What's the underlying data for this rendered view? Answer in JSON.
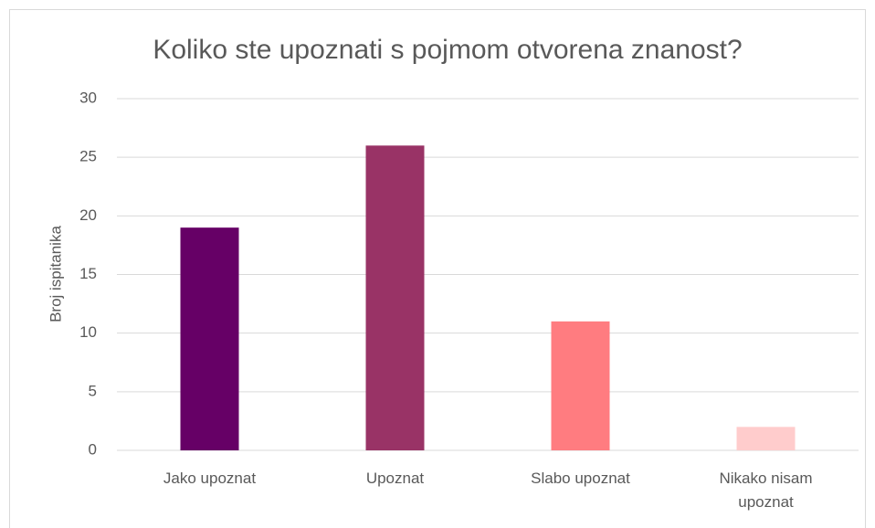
{
  "chart_data": {
    "type": "bar",
    "title": "Koliko ste upoznati s pojmom otvorena znanost?",
    "y_label": "Broj ispitanika",
    "categories": [
      "Jako upoznat",
      "Upoznat",
      "Slabo upoznat",
      "Nikako nisam upoznat"
    ],
    "values": [
      19,
      26,
      11,
      2
    ],
    "colors": [
      "#660066",
      "#993366",
      "#ff7c80",
      "#ffcccc"
    ],
    "ylim": [
      0,
      30
    ],
    "yticks": [
      0,
      5,
      10,
      15,
      20,
      25,
      30
    ],
    "grid": true
  }
}
